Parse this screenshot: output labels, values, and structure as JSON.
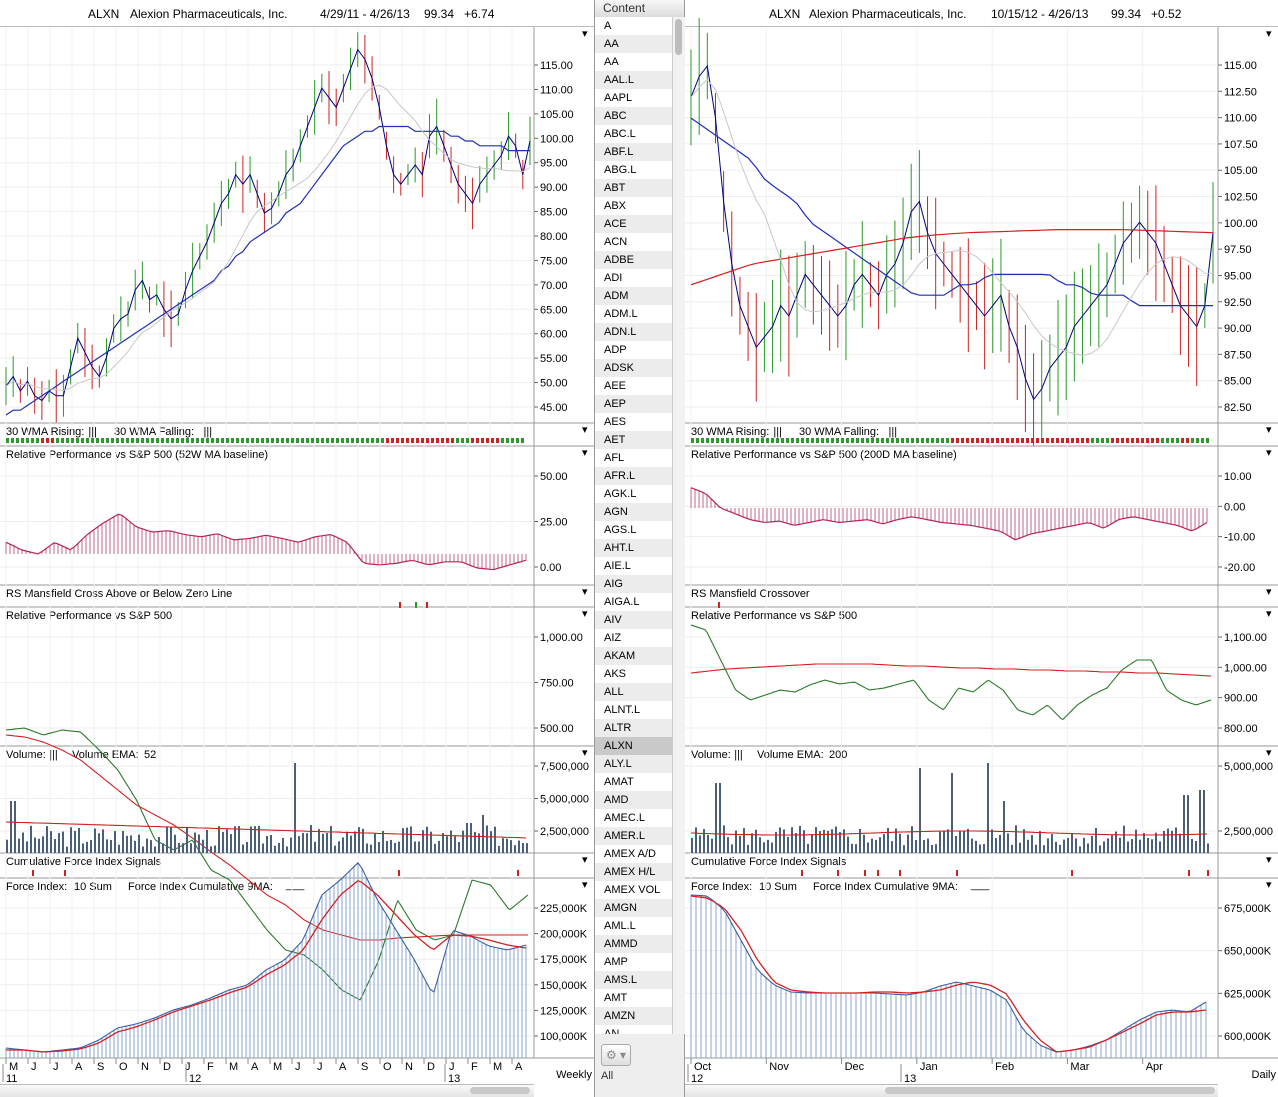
{
  "left": {
    "header": {
      "symbol": "ALXN",
      "company": "Alexion Pharmaceuticals, Inc.",
      "range": "4/29/11 - 4/26/13",
      "price": "99.34",
      "change": "+6.74"
    },
    "periodicity": "Weekly",
    "colors": {
      "up": "#2a9a2a",
      "down": "#cc2222",
      "price": "#000080",
      "wma": "#1f2fb8",
      "ma2": "#c0c0c0",
      "rs": "#b8245a",
      "rsline": "#2a7a2a",
      "redline": "#d42020",
      "vol": "#4a6078",
      "fi": "#5a7fb8"
    },
    "panels": [
      {
        "key": "price",
        "top": 27,
        "bot": 423,
        "ticks": [
          "115.00",
          "110.00",
          "105.00",
          "100.00",
          "95.00",
          "90.00",
          "85.00",
          "80.00",
          "75.00",
          "70.00",
          "65.00",
          "60.00",
          "55.00",
          "50.00",
          "45.00"
        ]
      },
      {
        "key": "wma",
        "top": 423,
        "bot": 446,
        "label": "30 WMA Rising:",
        "sign1": "|||",
        "label2": "30 WMA Falling:",
        "sign2": "|||"
      },
      {
        "key": "rs52",
        "top": 446,
        "bot": 585,
        "label": "Relative Performance vs S&P 500 (52W MA baseline)",
        "ticks": [
          "50.00",
          "25.00",
          "0.00"
        ]
      },
      {
        "key": "mans",
        "top": 585,
        "bot": 607,
        "label": "RS Mansfield Cross Above or Below Zero Line"
      },
      {
        "key": "rs",
        "top": 607,
        "bot": 746,
        "label": "Relative Performance vs S&P 500",
        "ticks": [
          "1,000.00",
          "750.00",
          "500.00"
        ]
      },
      {
        "key": "vol",
        "top": 746,
        "bot": 853,
        "label": "Volume:",
        "sign1": "|||",
        "label2": "Volume EMA:",
        "ema": "52",
        "ticks": [
          "7,500,000",
          "5,000,000",
          "2,500,000"
        ]
      },
      {
        "key": "cfis",
        "top": 853,
        "bot": 878,
        "label": "Cumulative Force Index Signals"
      },
      {
        "key": "fi",
        "top": 878,
        "bot": 1058,
        "label": "Force Index:",
        "sum": "10 Sum",
        "label2": "Force Index Cumulative 9MA:",
        "sign2": "___",
        "ticks": [
          "225,000K",
          "200,000K",
          "175,000K",
          "150,000K",
          "125,000K",
          "100,000K"
        ]
      }
    ],
    "xaxis": {
      "months": [
        "M",
        "J",
        "J",
        "A",
        "S",
        "O",
        "N",
        "D",
        "J",
        "F",
        "M",
        "A",
        "M",
        "J",
        "J",
        "A",
        "S",
        "O",
        "N",
        "D",
        "J",
        "F",
        "M",
        "A"
      ],
      "years": [
        "11",
        "12",
        "13"
      ]
    }
  },
  "right": {
    "header": {
      "symbol": "ALXN",
      "company": "Alexion Pharmaceuticals, Inc.",
      "range": "10/15/12 - 4/26/13",
      "price": "99.34",
      "change": "+0.52"
    },
    "periodicity": "Daily",
    "panels": [
      {
        "key": "price",
        "top": 27,
        "bot": 423,
        "ticks": [
          "115.00",
          "112.50",
          "110.00",
          "107.50",
          "105.00",
          "102.50",
          "100.00",
          "97.50",
          "95.00",
          "92.50",
          "90.00",
          "87.50",
          "85.00",
          "82.50"
        ]
      },
      {
        "key": "wma",
        "top": 423,
        "bot": 446,
        "label": "30 WMA Rising:",
        "sign1": "|||",
        "label2": "30 WMA Falling:",
        "sign2": "|||"
      },
      {
        "key": "rs200",
        "top": 446,
        "bot": 585,
        "label": "Relative Performance vs S&P 500 (200D MA baseline)",
        "ticks": [
          "10.00",
          "0.00",
          "-10.00",
          "-20.00"
        ]
      },
      {
        "key": "mans",
        "top": 585,
        "bot": 607,
        "label": "RS Mansfield Crossover"
      },
      {
        "key": "rs",
        "top": 607,
        "bot": 746,
        "label": "Relative Performance vs S&P 500",
        "ticks": [
          "1,100.00",
          "1,000.00",
          "900.00",
          "800.00"
        ]
      },
      {
        "key": "vol",
        "top": 746,
        "bot": 853,
        "label": "Volume:",
        "sign1": "|||",
        "label2": "Volume EMA:",
        "ema": "200",
        "ticks": [
          "5,000,000",
          "2,500,000"
        ]
      },
      {
        "key": "cfis",
        "top": 853,
        "bot": 878,
        "label": "Cumulative Force Index Signals"
      },
      {
        "key": "fi",
        "top": 878,
        "bot": 1058,
        "label": "Force Index:",
        "sum": "10 Sum",
        "label2": "Force Index Cumulative 9MA:",
        "sign2": "___",
        "ticks": [
          "675,000K",
          "650,000K",
          "625,000K",
          "600,000K"
        ]
      }
    ],
    "xaxis": {
      "months": [
        "Oct",
        "Nov",
        "Dec",
        "Jan",
        "Feb",
        "Mar",
        "Apr"
      ],
      "years": [
        "12",
        "13"
      ]
    }
  },
  "content_list": {
    "header": "Content",
    "items": [
      "A",
      "AA",
      "AA",
      "AAL.L",
      "AAPL",
      "ABC",
      "ABC.L",
      "ABF.L",
      "ABG.L",
      "ABT",
      "ABX",
      "ACE",
      "ACN",
      "ADBE",
      "ADI",
      "ADM",
      "ADM.L",
      "ADN.L",
      "ADP",
      "ADSK",
      "AEE",
      "AEP",
      "AES",
      "AET",
      "AFL",
      "AFR.L",
      "AGK.L",
      "AGN",
      "AGS.L",
      "AHT.L",
      "AIE.L",
      "AIG",
      "AIGA.L",
      "AIV",
      "AIZ",
      "AKAM",
      "AKS",
      "ALL",
      "ALNT.L",
      "ALTR",
      "ALXN",
      "ALY.L",
      "AMAT",
      "AMD",
      "AMEC.L",
      "AMER.L",
      "AMEX A/D",
      "AMEX H/L",
      "AMEX VOL",
      "AMGN",
      "AML.L",
      "AMMD",
      "AMP",
      "AMS.L",
      "AMT",
      "AMZN",
      "AN"
    ],
    "selected": "ALXN",
    "footer": "All",
    "gear_icon": "⚙ ▾"
  },
  "chart_data": [
    {
      "type": "line",
      "title": "ALXN Alexion Pharmaceuticals, Inc. 4/29/11 - 4/26/13 (Weekly)",
      "ylim": [
        42,
        120
      ],
      "series": [
        {
          "name": "ALXN",
          "values": [
            48,
            50,
            47,
            49,
            46,
            45,
            47,
            46,
            46,
            52,
            58,
            55,
            52,
            50,
            54,
            60,
            62,
            63,
            68,
            70,
            66,
            67,
            64,
            62,
            63,
            68,
            72,
            75,
            78,
            82,
            86,
            88,
            92,
            90,
            92,
            88,
            84,
            85,
            88,
            92,
            94,
            98,
            102,
            106,
            110,
            108,
            106,
            110,
            114,
            118,
            116,
            112,
            106,
            98,
            92,
            90,
            92,
            94,
            92,
            100,
            102,
            98,
            94,
            90,
            88,
            86,
            90,
            92,
            94,
            96,
            100,
            98,
            92,
            99
          ]
        },
        {
          "name": "30 WMA",
          "values": [
            42,
            43,
            43,
            44,
            45,
            46,
            47,
            48,
            49,
            50,
            51,
            52,
            53,
            54,
            55,
            56,
            57,
            58,
            59,
            60,
            61,
            62,
            63,
            64,
            65,
            66,
            67,
            68,
            69,
            70,
            72,
            73,
            75,
            76,
            78,
            79,
            80,
            81,
            82,
            84,
            85,
            86,
            88,
            90,
            92,
            94,
            96,
            98,
            99,
            100,
            101,
            101,
            102,
            102,
            102,
            102,
            102,
            101,
            101,
            101,
            101,
            101,
            100,
            100,
            99,
            99,
            98,
            98,
            98,
            98,
            97,
            97,
            97,
            97
          ]
        }
      ]
    },
    {
      "type": "line",
      "title": "ALXN Alexion Pharmaceuticals, Inc. 10/15/12 - 4/26/13 (Daily)",
      "ylim": [
        81.5,
        117.5
      ],
      "series": [
        {
          "name": "ALXN",
          "values": [
            112,
            114,
            115,
            110,
            102,
            96,
            92,
            90,
            88,
            89,
            90,
            92,
            91,
            93,
            95,
            94,
            93,
            92,
            91,
            92,
            94,
            95,
            94,
            93,
            95,
            96,
            98,
            101,
            102,
            99,
            97,
            96,
            95,
            94,
            93,
            92,
            91,
            92,
            93,
            90,
            88,
            85,
            83,
            84,
            86,
            87,
            88,
            90,
            91,
            92,
            93,
            94,
            96,
            98,
            99,
            100,
            99,
            98,
            96,
            94,
            92,
            91,
            90,
            92,
            99
          ]
        },
        {
          "name": "30 WMA",
          "values": [
            110,
            109,
            108,
            107,
            106,
            104,
            103,
            102,
            100,
            99,
            98,
            97,
            96,
            95,
            94,
            93,
            93,
            93,
            94,
            94,
            95,
            95,
            95,
            95,
            95,
            94,
            94,
            93,
            93,
            93,
            92,
            92,
            92,
            92,
            92,
            92
          ]
        },
        {
          "name": "200-day",
          "values": [
            94,
            95,
            96,
            96.5,
            97,
            97.5,
            98,
            98.5,
            98.8,
            99,
            99.1,
            99.2,
            99.3,
            99.3,
            99.3,
            99.2,
            99.1,
            99
          ]
        }
      ]
    }
  ]
}
